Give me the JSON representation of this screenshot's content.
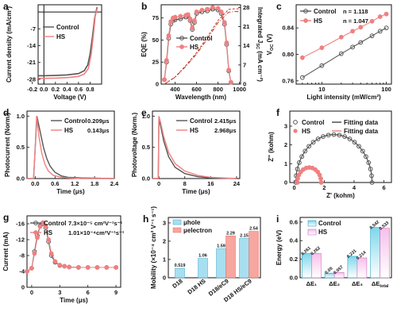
{
  "colors": {
    "control": "#555555",
    "hs": "#f08080",
    "hs_dark": "#c0392b",
    "hole": "#a8dff0",
    "electron": "#f7a6a0",
    "grad_top": "#f6c0ea",
    "grad_bot": "#ffffff"
  },
  "chart_data": [
    {
      "panel": "a",
      "type": "line",
      "xlabel": "Voltage (V)",
      "ylabel": "Current density (mA/cm²)",
      "xlim": [
        -0.1,
        1.0
      ],
      "ylim": [
        -30,
        3
      ],
      "xticks": [
        "-0.2",
        "0.0",
        "0.2",
        "0.4",
        "0.6",
        "0.8"
      ],
      "xtick_values": [
        -0.2,
        0.0,
        0.2,
        0.4,
        0.6,
        0.8
      ],
      "yticks": [
        "-7",
        "-14",
        "-21",
        "-28"
      ],
      "ytick_values": [
        -7,
        -14,
        -21,
        -28
      ],
      "legend": [
        "Control",
        "HS"
      ],
      "series": [
        {
          "name": "Control",
          "x": [
            -0.1,
            0.0,
            0.2,
            0.4,
            0.6,
            0.7,
            0.76,
            0.8,
            0.84,
            0.88,
            0.92
          ],
          "y": [
            -26.5,
            -26.5,
            -26.4,
            -26.2,
            -25.6,
            -24.4,
            -22.0,
            -17.5,
            -10.5,
            -2.5,
            2.0
          ]
        },
        {
          "name": "HS",
          "x": [
            -0.1,
            0.0,
            0.2,
            0.4,
            0.6,
            0.7,
            0.77,
            0.82,
            0.86,
            0.89,
            0.93
          ],
          "y": [
            -27.6,
            -27.6,
            -27.5,
            -27.3,
            -26.8,
            -25.8,
            -23.5,
            -17.5,
            -9.0,
            -1.5,
            2.0
          ]
        }
      ]
    },
    {
      "panel": "b",
      "type": "line",
      "xlabel": "Wavelength (nm)",
      "ylabel": "EQE (%)",
      "ylabel_right": "Integrated J_SC (mA cm⁻²)",
      "xlim": [
        270,
        1010
      ],
      "ylim": [
        0,
        90
      ],
      "ylim_right": [
        0,
        29
      ],
      "xticks": [
        "400",
        "600",
        "800",
        "1000"
      ],
      "xtick_values": [
        400,
        600,
        800,
        1000
      ],
      "yticks": [
        "0",
        "25",
        "50",
        "75"
      ],
      "ytick_values": [
        0,
        25,
        50,
        75
      ],
      "yticks_right": [
        "0",
        "7",
        "14",
        "21",
        "28"
      ],
      "ytick_values_right": [
        0,
        7,
        14,
        21,
        28
      ],
      "legend": [
        "Control",
        "HS"
      ],
      "series": [
        {
          "name": "Control",
          "x": [
            300,
            320,
            340,
            360,
            380,
            400,
            450,
            500,
            520,
            540,
            560,
            580,
            600,
            650,
            700,
            750,
            800,
            830,
            860,
            880,
            900,
            920
          ],
          "y": [
            5,
            25,
            52,
            68,
            72,
            73,
            74,
            76,
            77,
            72,
            62,
            70,
            80,
            82,
            83,
            85,
            84,
            80,
            68,
            45,
            15,
            2
          ]
        },
        {
          "name": "HS",
          "x": [
            300,
            320,
            340,
            360,
            380,
            400,
            450,
            500,
            520,
            540,
            560,
            580,
            600,
            650,
            700,
            750,
            800,
            830,
            860,
            880,
            900,
            920
          ],
          "y": [
            5,
            27,
            55,
            71,
            75,
            76,
            77,
            78,
            79,
            74,
            64,
            72,
            82,
            84,
            85,
            87,
            86,
            82,
            70,
            47,
            16,
            2
          ]
        },
        {
          "name": "Control J_SC",
          "axis": "right",
          "x": [
            300,
            400,
            500,
            600,
            700,
            800,
            900,
            950,
            1000
          ],
          "y": [
            0,
            2.5,
            6.5,
            11,
            16.5,
            22.5,
            26.3,
            26.5,
            26.5
          ]
        },
        {
          "name": "HS J_SC",
          "axis": "right",
          "x": [
            300,
            400,
            500,
            600,
            700,
            800,
            900,
            950,
            1000
          ],
          "y": [
            0,
            2.6,
            6.8,
            11.5,
            17.2,
            23.3,
            27.3,
            27.5,
            27.5
          ]
        }
      ]
    },
    {
      "panel": "c",
      "type": "scatter",
      "xscale": "log",
      "xlabel": "Light intensity (mW/cm²)",
      "ylabel": "V_OC (V)",
      "xlim": [
        4,
        120
      ],
      "ylim": [
        0.755,
        0.875
      ],
      "xticks": [
        "10",
        "100"
      ],
      "xtick_values": [
        10,
        100
      ],
      "yticks": [
        "0.76",
        "0.80",
        "0.84"
      ],
      "ytick_values": [
        0.76,
        0.8,
        0.84
      ],
      "legend": [
        "Control",
        "HS"
      ],
      "annotations": [
        {
          "label": "n = 1.118"
        },
        {
          "label": "n = 1.047"
        }
      ],
      "series": [
        {
          "name": "Control",
          "x": [
            5,
            10,
            20,
            30,
            40,
            60,
            80,
            100
          ],
          "y": [
            0.765,
            0.783,
            0.801,
            0.811,
            0.818,
            0.828,
            0.835,
            0.84
          ]
        },
        {
          "name": "HS",
          "x": [
            5,
            10,
            20,
            30,
            40,
            60,
            80,
            100
          ],
          "y": [
            0.795,
            0.81,
            0.826,
            0.835,
            0.841,
            0.85,
            0.857,
            0.861
          ]
        }
      ]
    },
    {
      "panel": "d",
      "type": "line",
      "xlabel": "Time (μs)",
      "ylabel": "Photocurrent (Norm.)",
      "xlim": [
        -0.25,
        2.4
      ],
      "ylim": [
        0,
        1.08
      ],
      "xticks": [
        "0.0",
        "0.6",
        "1.2",
        "1.8",
        "2.4"
      ],
      "xtick_values": [
        0.0,
        0.6,
        1.2,
        1.8,
        2.4
      ],
      "yticks": [
        "0.0",
        "0.5",
        "1.0"
      ],
      "ytick_values": [
        0.0,
        0.5,
        1.0
      ],
      "legend": [
        "Control",
        "HS"
      ],
      "annotations": [
        {
          "label": "0.209μs"
        },
        {
          "label": "0.143μs"
        }
      ],
      "series": [
        {
          "name": "Control",
          "x": [
            -0.25,
            -0.05,
            0.0,
            0.05,
            0.15,
            0.25,
            0.35,
            0.45,
            0.6,
            0.8,
            1.0,
            1.4,
            2.4
          ],
          "y": [
            0,
            0,
            0.5,
            1.0,
            0.75,
            0.5,
            0.32,
            0.2,
            0.1,
            0.04,
            0.02,
            0.01,
            0.0
          ]
        },
        {
          "name": "HS",
          "x": [
            -0.25,
            -0.05,
            0.0,
            0.04,
            0.12,
            0.2,
            0.3,
            0.4,
            0.55,
            0.8,
            1.0,
            1.4,
            2.4
          ],
          "y": [
            0,
            0,
            0.5,
            1.0,
            0.65,
            0.4,
            0.22,
            0.12,
            0.05,
            0.02,
            0.01,
            0.0,
            0.0
          ]
        }
      ]
    },
    {
      "panel": "e",
      "type": "line",
      "xlabel": "Time (μs)",
      "ylabel": "Photovoltage (Norm.)",
      "xlim": [
        -2,
        25
      ],
      "ylim": [
        0,
        1.08
      ],
      "xticks": [
        "0",
        "8",
        "16",
        "24"
      ],
      "xtick_values": [
        0,
        8,
        16,
        24
      ],
      "yticks": [
        "0.0",
        "0.5",
        "1.0"
      ],
      "ytick_values": [
        0.0,
        0.5,
        1.0
      ],
      "legend": [
        "Control",
        "HS"
      ],
      "annotations": [
        {
          "label": "2.415μs"
        },
        {
          "label": "2.968μs"
        }
      ],
      "series": [
        {
          "name": "Control",
          "x": [
            -2,
            -0.2,
            0.0,
            0.5,
            1.5,
            3,
            5,
            8,
            12,
            16,
            24
          ],
          "y": [
            0,
            0,
            0.95,
            0.85,
            0.6,
            0.35,
            0.18,
            0.08,
            0.03,
            0.01,
            0.0
          ]
        },
        {
          "name": "HS",
          "x": [
            -2,
            -0.2,
            0.0,
            0.5,
            1.5,
            3,
            5,
            8,
            12,
            16,
            24
          ],
          "y": [
            0,
            0,
            1.0,
            0.9,
            0.67,
            0.42,
            0.24,
            0.12,
            0.05,
            0.02,
            0.0
          ]
        }
      ]
    },
    {
      "panel": "f",
      "type": "scatter",
      "xlabel": "Z' (kohm)",
      "ylabel": "Z'' (kohm)",
      "xlim": [
        -0.3,
        6.5
      ],
      "ylim": [
        0,
        3.8
      ],
      "xticks": [
        "0",
        "2",
        "4",
        "6"
      ],
      "xtick_values": [
        0,
        2,
        4,
        6
      ],
      "yticks": [
        "0",
        "1",
        "2",
        "3"
      ],
      "ytick_values": [
        0,
        1,
        2,
        3
      ],
      "legend": [
        "Control",
        "HS",
        "Fitting data",
        "Fitting data"
      ],
      "series": [
        {
          "name": "Control",
          "center": 2.65,
          "radius": 2.55
        },
        {
          "name": "HS",
          "center": 1.0,
          "radius": 0.8
        }
      ]
    },
    {
      "panel": "g",
      "type": "line",
      "xlabel": "Time (μs)",
      "ylabel": "Current (mA)",
      "xlim": [
        -0.5,
        9.5
      ],
      "ylim": [
        0,
        -18
      ],
      "xticks": [
        "0",
        "3",
        "6",
        "9"
      ],
      "xtick_values": [
        0,
        3,
        6,
        9
      ],
      "yticks": [
        "0",
        "-4",
        "-8",
        "-12",
        "-16"
      ],
      "ytick_values": [
        0,
        -4,
        -8,
        -12,
        -16
      ],
      "legend": [
        "Control",
        "HS"
      ],
      "annotations": [
        {
          "label": "7.3×10⁻⁵ cm²V⁻¹s⁻¹"
        },
        {
          "label": "1.01×10⁻⁴cm²V⁻¹s⁻¹"
        }
      ],
      "series": [
        {
          "name": "Control",
          "x": [
            -0.5,
            0,
            0.3,
            0.6,
            0.9,
            1.2,
            1.5,
            1.8,
            2.1,
            2.5,
            3,
            3.5,
            4,
            5,
            6,
            7,
            8,
            9
          ],
          "y": [
            -4,
            -4.8,
            -9,
            -13,
            -15.5,
            -16,
            -15,
            -11.5,
            -8,
            -6.3,
            -5.5,
            -5.3,
            -5.1,
            -5,
            -5,
            -5,
            -5,
            -5
          ]
        },
        {
          "name": "HS",
          "x": [
            -0.5,
            0,
            0.3,
            0.6,
            0.9,
            1.2,
            1.5,
            1.8,
            2.1,
            2.5,
            3,
            3.5,
            4,
            5,
            6,
            7,
            8,
            9
          ],
          "y": [
            -4,
            -4.8,
            -8.5,
            -12.5,
            -15.3,
            -16.3,
            -15.5,
            -12,
            -8.5,
            -6.5,
            -5.6,
            -5.3,
            -5.1,
            -5,
            -5,
            -5,
            -5,
            -5
          ]
        }
      ]
    },
    {
      "panel": "h",
      "type": "bar",
      "xlabel": "",
      "ylabel": "Mobility (×10⁻⁴ cm² V⁻¹ s⁻¹)",
      "ylim": [
        0,
        3.3
      ],
      "yticks": [
        "0",
        "1",
        "2",
        "3"
      ],
      "ytick_values": [
        0,
        1,
        2,
        3
      ],
      "categories": [
        "D18",
        "D18 HS",
        "D18/eC9",
        "D18 HS/eC9"
      ],
      "legend": [
        "μhole",
        "μelectron"
      ],
      "series": [
        {
          "name": "μhole",
          "values": [
            0.519,
            1.06,
            1.59,
            2.15
          ],
          "labels": [
            "0.519",
            "1.06",
            "1.59",
            "2.15"
          ]
        },
        {
          "name": "μelectron",
          "values": [
            null,
            null,
            2.29,
            2.54
          ],
          "labels": [
            "",
            "",
            "2.29",
            "2.54"
          ]
        }
      ]
    },
    {
      "panel": "i",
      "type": "bar",
      "xlabel": "",
      "ylabel": "Energy (eV)",
      "ylim": [
        0,
        0.65
      ],
      "yticks": [
        "0.0",
        "0.2",
        "0.4",
        "0.6"
      ],
      "ytick_values": [
        0.0,
        0.2,
        0.4,
        0.6
      ],
      "categories": [
        "ΔE₁",
        "ΔE₂",
        "ΔE₃",
        "ΔE_total"
      ],
      "legend": [
        "Control",
        "HS"
      ],
      "series": [
        {
          "name": "Control",
          "values": [
            0.261,
            0.05,
            0.231,
            0.542
          ],
          "labels": [
            "0.261",
            "0.05",
            "0.231",
            "0.542"
          ]
        },
        {
          "name": "HS",
          "values": [
            0.262,
            0.057,
            0.214,
            0.533
          ],
          "labels": [
            "0.262",
            "0.057",
            "0.214",
            "0.533"
          ]
        }
      ]
    }
  ]
}
